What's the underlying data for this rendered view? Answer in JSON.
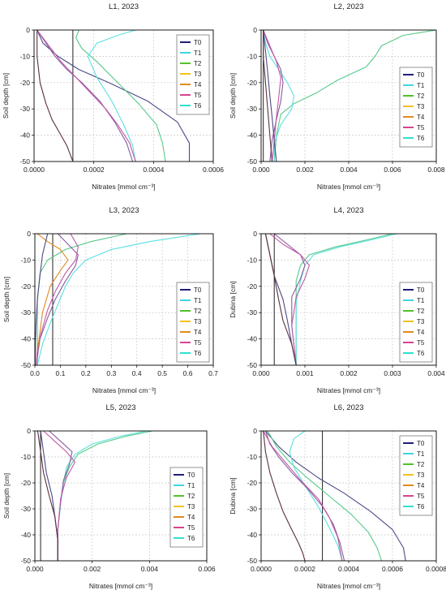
{
  "figure": {
    "colors": {
      "T0": "#1f1f7a",
      "T1": "#3fd6e0",
      "T2": "#52c22a",
      "T3": "#f2c21a",
      "T4": "#e08a1f",
      "T5": "#d8448f",
      "T6": "#2fe0d0",
      "curve_dark_blue": "#4b4a86",
      "curve_green": "#57c98a",
      "curve_cyan": "#5ce0e0",
      "curve_purple": "#8a5aa0",
      "curve_magenta": "#c05aa6",
      "curve_brown": "#5a3040",
      "grid": "#c9c9c9",
      "axis": "#000000"
    }
  },
  "chart_data": [
    {
      "type": "line",
      "title": "L1, 2023",
      "xlabel": "Nitrates [mmol cm⁻³]",
      "ylabel": "Soil depth [cm]",
      "xlim": [
        0,
        0.0006
      ],
      "ylim": [
        -50,
        0
      ],
      "xticks": [
        "0.0000",
        "0.0002",
        "0.0004",
        "0.0006"
      ],
      "yticks": [
        "0",
        "-10",
        "-20",
        "-30",
        "-40",
        "-50"
      ],
      "legend": [
        "T0",
        "T1",
        "T2",
        "T3",
        "T4",
        "T5",
        "T6"
      ],
      "legend_position": "top-right",
      "vline": 0.00013,
      "series": [
        {
          "color": "#4b4a86",
          "x": [
            1e-05,
            3e-05,
            8e-05,
            0.00015,
            0.00025,
            0.00038,
            0.00048,
            0.00052,
            0.00052
          ],
          "y": [
            0,
            -5,
            -10,
            -15,
            -20,
            -27,
            -35,
            -43,
            -50
          ]
        },
        {
          "color": "#57c98a",
          "x": [
            0.00015,
            0.00014,
            0.00016,
            0.00021,
            0.00028,
            0.00035,
            0.00041,
            0.00043,
            0.00044
          ],
          "y": [
            0,
            -3,
            -7,
            -12,
            -20,
            -28,
            -36,
            -43,
            -50
          ]
        },
        {
          "color": "#5ce0e0",
          "x": [
            0.00034,
            0.00028,
            0.00021,
            0.00018,
            0.00021,
            0.00026,
            0.0003,
            0.00033,
            0.00034
          ],
          "y": [
            0,
            -2,
            -5,
            -10,
            -18,
            -27,
            -36,
            -44,
            -50
          ]
        },
        {
          "color": "#8a5aa0",
          "x": [
            1e-05,
            4e-05,
            7e-05,
            0.00011,
            0.00016,
            0.00022,
            0.00027,
            0.00031,
            0.00033
          ],
          "y": [
            0,
            -5,
            -10,
            -15,
            -20,
            -27,
            -35,
            -43,
            -50
          ]
        },
        {
          "color": "#c05aa6",
          "x": [
            1e-05,
            5e-05,
            9e-05,
            0.00014,
            0.00019,
            0.00024,
            0.00028,
            0.00032,
            0.00034
          ],
          "y": [
            0,
            -6,
            -12,
            -18,
            -24,
            -30,
            -36,
            -43,
            -50
          ]
        },
        {
          "color": "#5a3040",
          "x": [
            1e-05,
            1e-05,
            2e-05,
            4e-05,
            6e-05,
            9e-05,
            0.00011,
            0.00012,
            0.00013
          ],
          "y": [
            0,
            -10,
            -20,
            -28,
            -34,
            -40,
            -44,
            -47,
            -50
          ]
        }
      ]
    },
    {
      "type": "line",
      "title": "L2, 2023",
      "xlabel": "Nitrates [mmol cm⁻³]",
      "ylabel": "Soil depth [cm]",
      "xlim": [
        0,
        0.008
      ],
      "ylim": [
        -50,
        0
      ],
      "xticks": [
        "0.000",
        "0.002",
        "0.004",
        "0.006",
        "0.008"
      ],
      "yticks": [
        "0",
        "-10",
        "-20",
        "-30",
        "-40",
        "-50"
      ],
      "legend": [
        "T0",
        "T1",
        "T2",
        "T3",
        "T4",
        "T5",
        "T6"
      ],
      "legend_position": "right",
      "vline": 0.0001,
      "series": [
        {
          "color": "#57c98a",
          "x": [
            0.008,
            0.0065,
            0.0055,
            0.0052,
            0.0048,
            0.0035,
            0.0025,
            0.0015,
            0.0009,
            0.0007,
            0.0006
          ],
          "y": [
            0,
            -2,
            -6,
            -10,
            -14,
            -19,
            -24,
            -28,
            -32,
            -40,
            -50
          ]
        },
        {
          "color": "#5ce0e0",
          "x": [
            0.0001,
            0.0002,
            0.0004,
            0.0008,
            0.0012,
            0.0015,
            0.0014,
            0.0009,
            0.0006,
            0.0006
          ],
          "y": [
            0,
            -5,
            -10,
            -15,
            -20,
            -25,
            -30,
            -36,
            -43,
            -50
          ]
        },
        {
          "color": "#8a5aa0",
          "x": [
            0.0001,
            0.0003,
            0.0006,
            0.0009,
            0.001,
            0.0009,
            0.0007,
            0.0005,
            0.0004
          ],
          "y": [
            0,
            -5,
            -10,
            -15,
            -20,
            -27,
            -34,
            -42,
            -50
          ]
        },
        {
          "color": "#c05aa6",
          "x": [
            0.0001,
            0.0004,
            0.0007,
            0.0009,
            0.0008,
            0.0007,
            0.0006,
            0.0005
          ],
          "y": [
            0,
            -6,
            -12,
            -18,
            -26,
            -33,
            -42,
            -50
          ]
        },
        {
          "color": "#4b4a86",
          "x": [
            0.0001,
            0.0002,
            0.0003,
            0.0004,
            0.0005,
            0.0006,
            0.0007
          ],
          "y": [
            0,
            -8,
            -16,
            -25,
            -33,
            -42,
            -50
          ]
        },
        {
          "color": "#5a3040",
          "x": [
            0.0001,
            0.0001,
            0.0002,
            0.0003,
            0.0004,
            0.0005
          ],
          "y": [
            0,
            -10,
            -20,
            -30,
            -40,
            -50
          ]
        }
      ]
    },
    {
      "type": "line",
      "title": "L3, 2023",
      "xlabel": "Nitrates [mmol cm⁻³]",
      "ylabel": "Soil depth [cm]",
      "xlim": [
        0,
        0.7
      ],
      "ylim": [
        -50,
        0
      ],
      "xticks": [
        "0.0",
        "0.1",
        "0.2",
        "0.3",
        "0.4",
        "0.5",
        "0.6",
        "0.7"
      ],
      "yticks": [
        "0",
        "-10",
        "-20",
        "-30",
        "-40",
        "-50"
      ],
      "legend": [
        "T0",
        "T1",
        "T2",
        "T3",
        "T4",
        "T5",
        "T6"
      ],
      "legend_position": "bottom-right",
      "vline": 0.07,
      "series": [
        {
          "color": "#5ce0e0",
          "x": [
            0.65,
            0.45,
            0.3,
            0.2,
            0.15,
            0.12,
            0.09,
            0.06,
            0.03,
            0.01
          ],
          "y": [
            0,
            -3,
            -6,
            -10,
            -15,
            -20,
            -27,
            -34,
            -42,
            -50
          ]
        },
        {
          "color": "#57c98a",
          "x": [
            0.36,
            0.22,
            0.12,
            0.05,
            0.02,
            0.01,
            0.01,
            0.01
          ],
          "y": [
            0,
            -3,
            -6,
            -10,
            -15,
            -25,
            -38,
            -50
          ]
        },
        {
          "color": "#8a5aa0",
          "x": [
            0.09,
            0.13,
            0.17,
            0.16,
            0.12,
            0.08,
            0.05,
            0.02,
            0.005
          ],
          "y": [
            0,
            -4,
            -8,
            -12,
            -18,
            -25,
            -32,
            -40,
            -50
          ]
        },
        {
          "color": "#c05aa6",
          "x": [
            0.14,
            0.17,
            0.16,
            0.12,
            0.08,
            0.05,
            0.03,
            0.01,
            0.005
          ],
          "y": [
            0,
            -5,
            -10,
            -15,
            -22,
            -29,
            -36,
            -43,
            -50
          ]
        },
        {
          "color": "#e08a1f",
          "x": [
            0.01,
            0.05,
            0.1,
            0.13,
            0.1,
            0.06,
            0.03,
            0.01
          ],
          "y": [
            0,
            -3,
            -6,
            -10,
            -14,
            -20,
            -30,
            -45
          ]
        },
        {
          "color": "#4b4a86",
          "x": [
            0.05,
            0.03,
            0.02,
            0.01,
            0.005,
            0.002,
            0.001
          ],
          "y": [
            0,
            -8,
            -16,
            -25,
            -33,
            -42,
            -50
          ]
        }
      ]
    },
    {
      "type": "line",
      "title": "L4, 2023",
      "xlabel": "Nitrates [mmol cm⁻³]",
      "ylabel": "Dubina [cm]",
      "xlim": [
        0,
        0.004
      ],
      "ylim": [
        -50,
        0
      ],
      "xticks": [
        "0.000",
        "0.001",
        "0.002",
        "0.003",
        "0.004"
      ],
      "yticks": [
        "0",
        "-10",
        "-20",
        "-30",
        "-40",
        "-50"
      ],
      "legend": [
        "T0",
        "T1",
        "T2",
        "T3",
        "T4",
        "T5",
        "T6"
      ],
      "legend_position": "bottom-right",
      "vline": 0.0003,
      "series": [
        {
          "color": "#57c98a",
          "x": [
            0.003,
            0.0025,
            0.0017,
            0.0011,
            0.0009,
            0.0008,
            0.0008,
            0.0008,
            0.0008
          ],
          "y": [
            0,
            -2,
            -5,
            -8,
            -12,
            -18,
            -26,
            -38,
            -50
          ]
        },
        {
          "color": "#5ce0e0",
          "x": [
            0.0031,
            0.0026,
            0.0018,
            0.0012,
            0.001,
            0.0009,
            0.0008,
            0.0008,
            0.0008
          ],
          "y": [
            0,
            -2,
            -5,
            -8,
            -12,
            -18,
            -26,
            -38,
            -50
          ]
        },
        {
          "color": "#8a5aa0",
          "x": [
            0.0003,
            0.0006,
            0.0009,
            0.001,
            0.0009,
            0.0007,
            0.0007,
            0.0008
          ],
          "y": [
            0,
            -4,
            -8,
            -12,
            -17,
            -24,
            -35,
            -50
          ]
        },
        {
          "color": "#c05aa6",
          "x": [
            0.0002,
            0.0005,
            0.0009,
            0.0011,
            0.001,
            0.0008,
            0.0007,
            0.0008
          ],
          "y": [
            0,
            -4,
            -8,
            -12,
            -17,
            -24,
            -35,
            -50
          ]
        },
        {
          "color": "#4b4a86",
          "x": [
            0.0001,
            0.0002,
            0.0003,
            0.0005,
            0.0006,
            0.0007,
            0.0008
          ],
          "y": [
            0,
            -8,
            -16,
            -25,
            -33,
            -42,
            -50
          ]
        },
        {
          "color": "#5a3040",
          "x": [
            0.0001,
            0.0002,
            0.0003,
            0.0004,
            0.0005,
            0.0007,
            0.0008
          ],
          "y": [
            0,
            -8,
            -16,
            -25,
            -33,
            -42,
            -50
          ]
        }
      ]
    },
    {
      "type": "line",
      "title": "L5, 2023",
      "xlabel": "Nitrates [mmol cm⁻³]",
      "ylabel": "Soil depth [cm]",
      "xlim": [
        0,
        0.006
      ],
      "ylim": [
        -50,
        0
      ],
      "xticks": [
        "0.000",
        "0.002",
        "0.004",
        "0.006"
      ],
      "yticks": [
        "0",
        "-10",
        "-20",
        "-30",
        "-40",
        "-50"
      ],
      "legend": [
        "T0",
        "T1",
        "T2",
        "T3",
        "T4",
        "T5",
        "T6"
      ],
      "legend_position": "right",
      "vline": 0.0002,
      "series": [
        {
          "color": "#57c98a",
          "x": [
            0.0041,
            0.0032,
            0.0022,
            0.0015,
            0.0012,
            0.001,
            0.0009,
            0.0008,
            0.0008
          ],
          "y": [
            0,
            -2,
            -5,
            -9,
            -14,
            -20,
            -28,
            -38,
            -50
          ]
        },
        {
          "color": "#5ce0e0",
          "x": [
            0.0039,
            0.003,
            0.002,
            0.0014,
            0.0011,
            0.001,
            0.0009,
            0.0008,
            0.0008
          ],
          "y": [
            0,
            -2,
            -5,
            -9,
            -14,
            -20,
            -28,
            -38,
            -50
          ]
        },
        {
          "color": "#8a5aa0",
          "x": [
            0.0005,
            0.0009,
            0.0013,
            0.0012,
            0.001,
            0.0009,
            0.0008,
            0.0008
          ],
          "y": [
            0,
            -4,
            -8,
            -13,
            -19,
            -27,
            -38,
            -50
          ]
        },
        {
          "color": "#c05aa6",
          "x": [
            0.0003,
            0.0007,
            0.0011,
            0.0014,
            0.0011,
            0.0009,
            0.0008,
            0.0008
          ],
          "y": [
            0,
            -4,
            -8,
            -12,
            -18,
            -26,
            -38,
            -50
          ]
        },
        {
          "color": "#4b4a86",
          "x": [
            0.0002,
            0.0003,
            0.0004,
            0.0006,
            0.0007,
            0.0008,
            0.0008
          ],
          "y": [
            0,
            -8,
            -16,
            -25,
            -33,
            -42,
            -50
          ]
        },
        {
          "color": "#5a3040",
          "x": [
            0.0001,
            0.0002,
            0.0003,
            0.0005,
            0.0007,
            0.0008,
            0.0008
          ],
          "y": [
            0,
            -8,
            -16,
            -25,
            -33,
            -42,
            -50
          ]
        }
      ]
    },
    {
      "type": "line",
      "title": "L6, 2023",
      "xlabel": "Nitrates [mmol cm⁻³]",
      "ylabel": "Dubina [cm]",
      "xlim": [
        0,
        0.0008
      ],
      "ylim": [
        -50,
        0
      ],
      "xticks": [
        "0.0000",
        "0.0002",
        "0.0004",
        "0.0006",
        "0.0008"
      ],
      "yticks": [
        "0",
        "-10",
        "-20",
        "-30",
        "-40",
        "-50"
      ],
      "legend": [
        "T0",
        "T1",
        "T2",
        "T3",
        "T4",
        "T5",
        "T6"
      ],
      "legend_position": "top-right",
      "vline": 0.00028,
      "series": [
        {
          "color": "#4b4a86",
          "x": [
            2e-05,
            8e-05,
            0.00016,
            0.00026,
            0.00038,
            0.0005,
            0.0006,
            0.00065,
            0.00066
          ],
          "y": [
            0,
            -6,
            -12,
            -18,
            -24,
            -31,
            -38,
            -45,
            -50
          ]
        },
        {
          "color": "#57c98a",
          "x": [
            3e-05,
            7e-05,
            0.00013,
            0.00021,
            0.00031,
            0.00041,
            0.00049,
            0.00053,
            0.00055
          ],
          "y": [
            0,
            -6,
            -12,
            -18,
            -25,
            -32,
            -39,
            -45,
            -50
          ]
        },
        {
          "color": "#5ce0e0",
          "x": [
            0.0002,
            0.00015,
            0.00013,
            0.00015,
            0.0002,
            0.00026,
            0.00031,
            0.00035,
            0.00037
          ],
          "y": [
            0,
            -3,
            -8,
            -14,
            -21,
            -29,
            -37,
            -44,
            -50
          ]
        },
        {
          "color": "#8a5aa0",
          "x": [
            2e-05,
            4e-05,
            8e-05,
            0.00014,
            0.00021,
            0.00028,
            0.00033,
            0.00036,
            0.00038
          ],
          "y": [
            0,
            -5,
            -10,
            -16,
            -22,
            -29,
            -36,
            -43,
            -50
          ]
        },
        {
          "color": "#c05aa6",
          "x": [
            1e-05,
            5e-05,
            0.00011,
            0.00018,
            0.00026,
            0.00031,
            0.00035,
            0.00037
          ],
          "y": [
            0,
            -6,
            -12,
            -19,
            -26,
            -33,
            -41,
            -50
          ]
        },
        {
          "color": "#5a3040",
          "x": [
            1e-05,
            2e-05,
            4e-05,
            7e-05,
            0.0001,
            0.00014,
            0.00017,
            0.00019,
            0.0002
          ],
          "y": [
            0,
            -8,
            -16,
            -24,
            -31,
            -38,
            -43,
            -47,
            -50
          ]
        }
      ]
    }
  ]
}
